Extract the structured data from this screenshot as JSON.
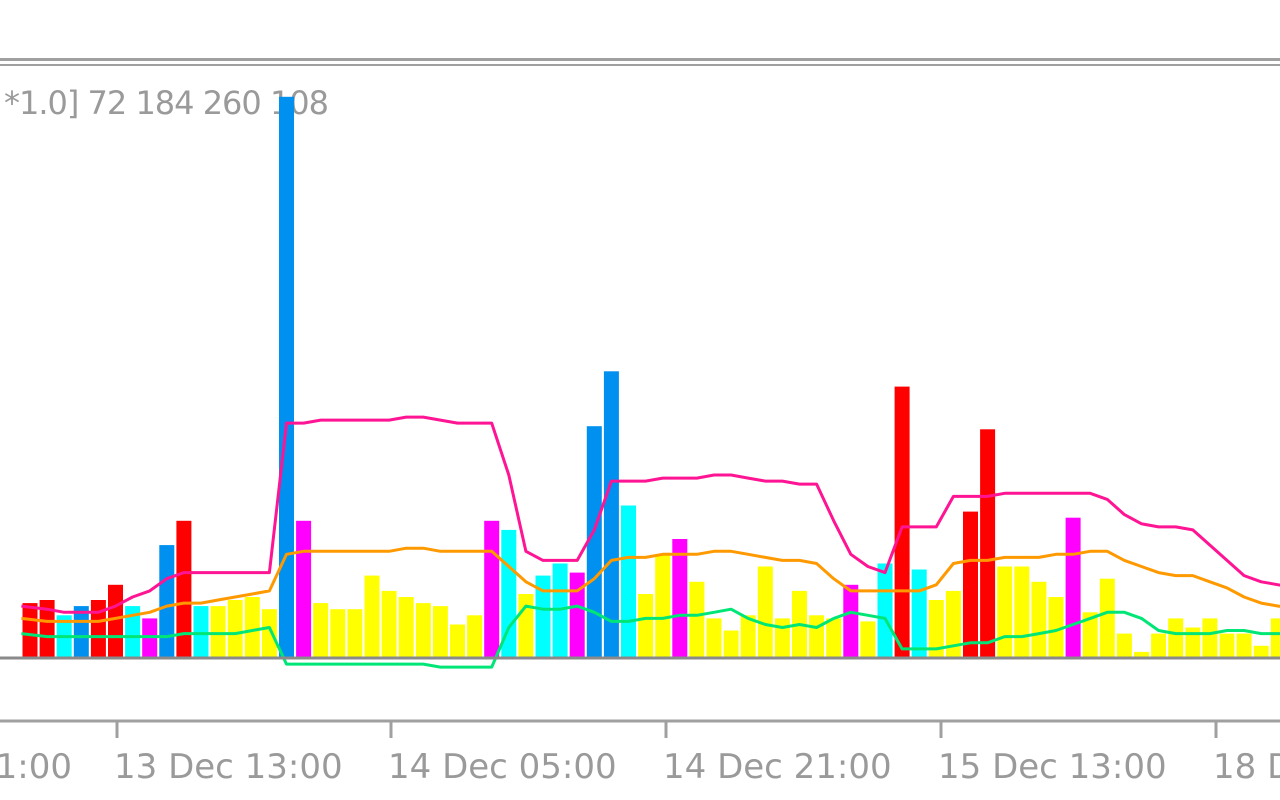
{
  "indicator_label": "*1.0] 72 184 260 108",
  "colors": {
    "background": "#ffffff",
    "separator": "#a0a0a0",
    "axis": "#8a8a8a",
    "text": "#9a9a9a",
    "yellow": "#ffff00",
    "cyan": "#00ffff",
    "blue": "#0090f0",
    "red": "#ff0000",
    "magenta": "#ff00ff"
  },
  "chart_data": {
    "type": "bar",
    "x_tick_labels": [
      "1:00",
      "13 Dec 13:00",
      "14 Dec 05:00",
      "14 Dec 21:00",
      "15 Dec 13:00",
      "18 De"
    ],
    "bar_colors": [
      "red",
      "red",
      "cyan",
      "blue",
      "red",
      "red",
      "cyan",
      "magenta",
      "blue",
      "red",
      "cyan",
      "yellow",
      "yellow",
      "yellow",
      "yellow",
      "blue",
      "magenta",
      "yellow",
      "yellow",
      "yellow",
      "yellow",
      "yellow",
      "yellow",
      "yellow",
      "yellow",
      "yellow",
      "yellow",
      "magenta",
      "cyan",
      "yellow",
      "cyan",
      "cyan",
      "magenta",
      "blue",
      "blue",
      "cyan",
      "yellow",
      "yellow",
      "magenta",
      "yellow",
      "yellow",
      "yellow",
      "yellow",
      "yellow",
      "yellow",
      "yellow",
      "yellow",
      "yellow",
      "magenta",
      "yellow",
      "cyan",
      "red",
      "cyan",
      "yellow",
      "yellow",
      "red",
      "red",
      "yellow",
      "yellow",
      "yellow",
      "yellow",
      "magenta",
      "yellow",
      "yellow",
      "yellow",
      "yellow",
      "yellow",
      "yellow",
      "yellow",
      "yellow",
      "yellow",
      "yellow",
      "yellow",
      "yellow",
      "yellow",
      "blue"
    ],
    "values": [
      18,
      19,
      14,
      17,
      19,
      24,
      17,
      13,
      37,
      45,
      17,
      17,
      19,
      20,
      16,
      184,
      45,
      18,
      16,
      16,
      27,
      22,
      20,
      18,
      17,
      11,
      14,
      45,
      42,
      21,
      27,
      31,
      28,
      76,
      94,
      50,
      21,
      34,
      39,
      25,
      13,
      9,
      14,
      30,
      13,
      22,
      14,
      13,
      24,
      12,
      31,
      89,
      29,
      19,
      22,
      48,
      75,
      30,
      30,
      25,
      20,
      46,
      15,
      26,
      8,
      2,
      8,
      13,
      10,
      13,
      8,
      8,
      4,
      13,
      11,
      22
    ],
    "series": [
      {
        "color": "#ff1493",
        "values": [
          17,
          16,
          15,
          15,
          15,
          17,
          20,
          22,
          26,
          28,
          28,
          28,
          28,
          28,
          28,
          77,
          77,
          78,
          78,
          78,
          78,
          78,
          79,
          79,
          78,
          77,
          77,
          77,
          60,
          35,
          32,
          32,
          32,
          42,
          58,
          58,
          58,
          59,
          59,
          59,
          60,
          60,
          59,
          58,
          58,
          57,
          57,
          45,
          34,
          30,
          28,
          43,
          43,
          43,
          53,
          53,
          53,
          54,
          54,
          54,
          54,
          54,
          54,
          52,
          47,
          44,
          43,
          43,
          42,
          37,
          32,
          27,
          25,
          24,
          23,
          22
        ]
      },
      {
        "color": "#ff9900",
        "values": [
          13,
          12,
          12,
          12,
          12,
          13,
          14,
          15,
          17,
          18,
          18,
          19,
          20,
          21,
          22,
          34,
          35,
          35,
          35,
          35,
          35,
          35,
          36,
          36,
          35,
          35,
          35,
          35,
          30,
          25,
          22,
          22,
          22,
          26,
          32,
          33,
          33,
          34,
          34,
          34,
          35,
          35,
          34,
          33,
          32,
          32,
          31,
          26,
          22,
          22,
          22,
          22,
          22,
          24,
          31,
          32,
          32,
          33,
          33,
          33,
          34,
          34,
          35,
          35,
          32,
          30,
          28,
          27,
          27,
          25,
          23,
          20,
          18,
          17,
          16,
          15
        ]
      },
      {
        "color": "#00e676",
        "values": [
          8,
          7,
          7,
          7,
          7,
          7,
          7,
          7,
          7,
          8,
          8,
          8,
          8,
          9,
          10,
          -2,
          -2,
          -2,
          -2,
          -2,
          -2,
          -2,
          -2,
          -2,
          -3,
          -3,
          -3,
          -3,
          10,
          17,
          16,
          16,
          17,
          15,
          12,
          12,
          13,
          13,
          14,
          14,
          15,
          16,
          13,
          11,
          10,
          11,
          10,
          13,
          15,
          14,
          13,
          3,
          3,
          3,
          4,
          5,
          5,
          7,
          7,
          8,
          9,
          11,
          13,
          15,
          15,
          13,
          9,
          8,
          8,
          8,
          9,
          9,
          8,
          8,
          8,
          7
        ]
      }
    ]
  }
}
